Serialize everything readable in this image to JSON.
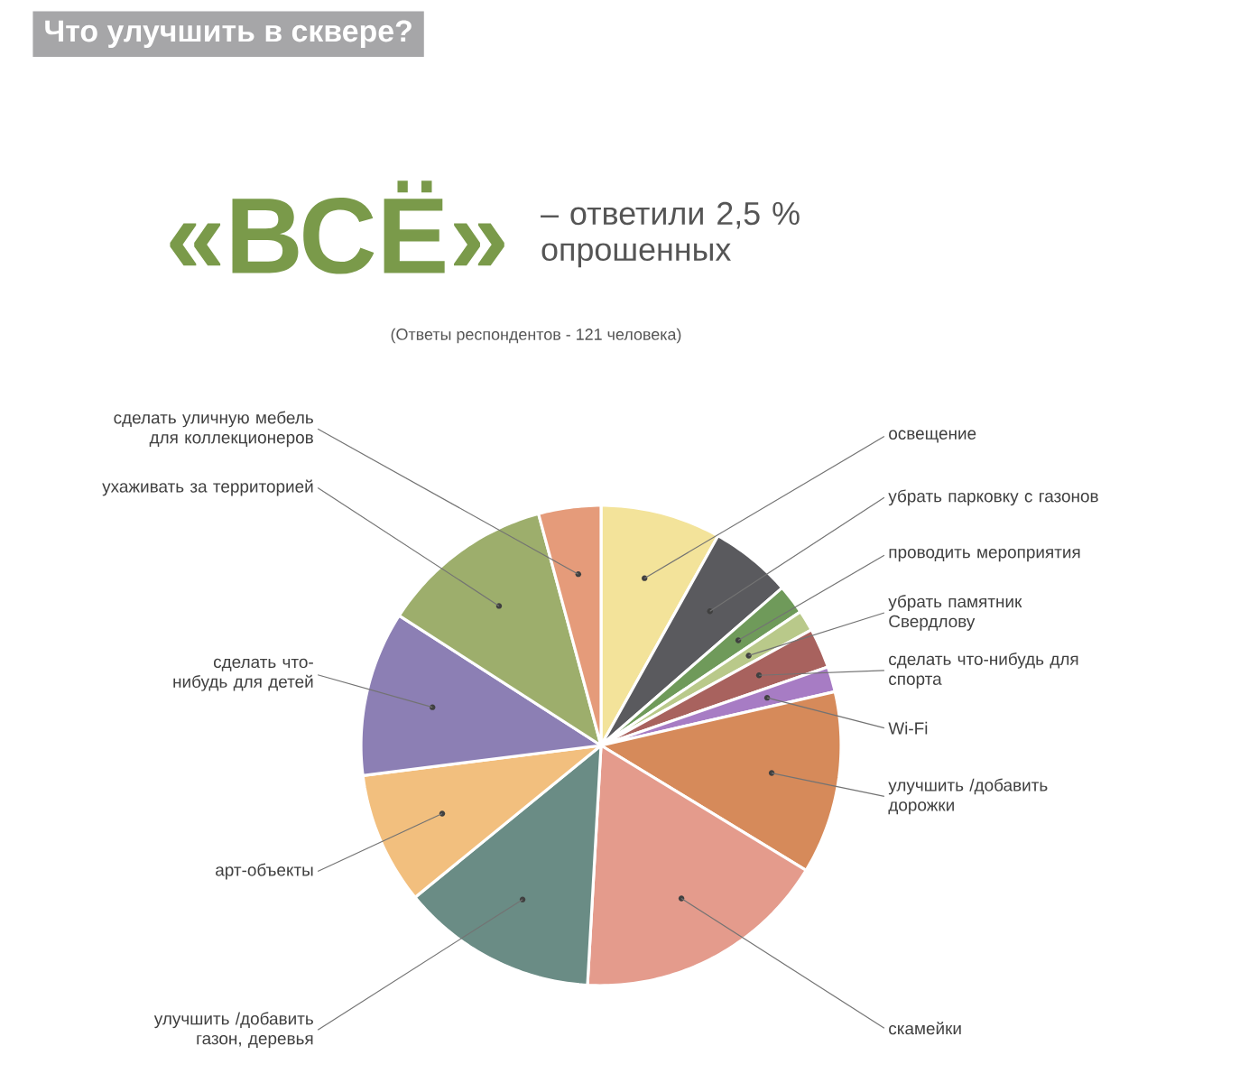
{
  "chart_data": {
    "type": "pie",
    "title": "Что улучшить в сквере?",
    "subtitle": "«ВСЁ»",
    "annotations": [
      "– ответили 2,5 % опрошенных",
      "(Ответы респондентов - 121 человека)"
    ],
    "categories": [
      "освещение",
      "убрать парковку с газонов",
      "проводить мероприятия",
      "убрать памятник Свердлову",
      "сделать что-нибудь для спорта",
      "Wi-Fi",
      "улучшить /добавить дорожки",
      "скамейки",
      "улучшить /добавить газон, деревья",
      "арт-объекты",
      "сделать что-нибудь для детей",
      "ухаживать за территорией",
      "сделать уличную мебель для коллекционеров"
    ],
    "values": [
      8.1,
      5.5,
      2.0,
      1.4,
      2.7,
      1.7,
      12.3,
      17.2,
      13.2,
      8.9,
      11.1,
      11.7,
      4.2
    ],
    "colors": [
      "#f3e39a",
      "#5a5a5e",
      "#6f9a5a",
      "#b9c98a",
      "#a8625e",
      "#a77cc4",
      "#d68a5a",
      "#e49b8c",
      "#6a8c85",
      "#f2bf7e",
      "#8c7fb4",
      "#9dae6c",
      "#e59b7a"
    ]
  }
}
